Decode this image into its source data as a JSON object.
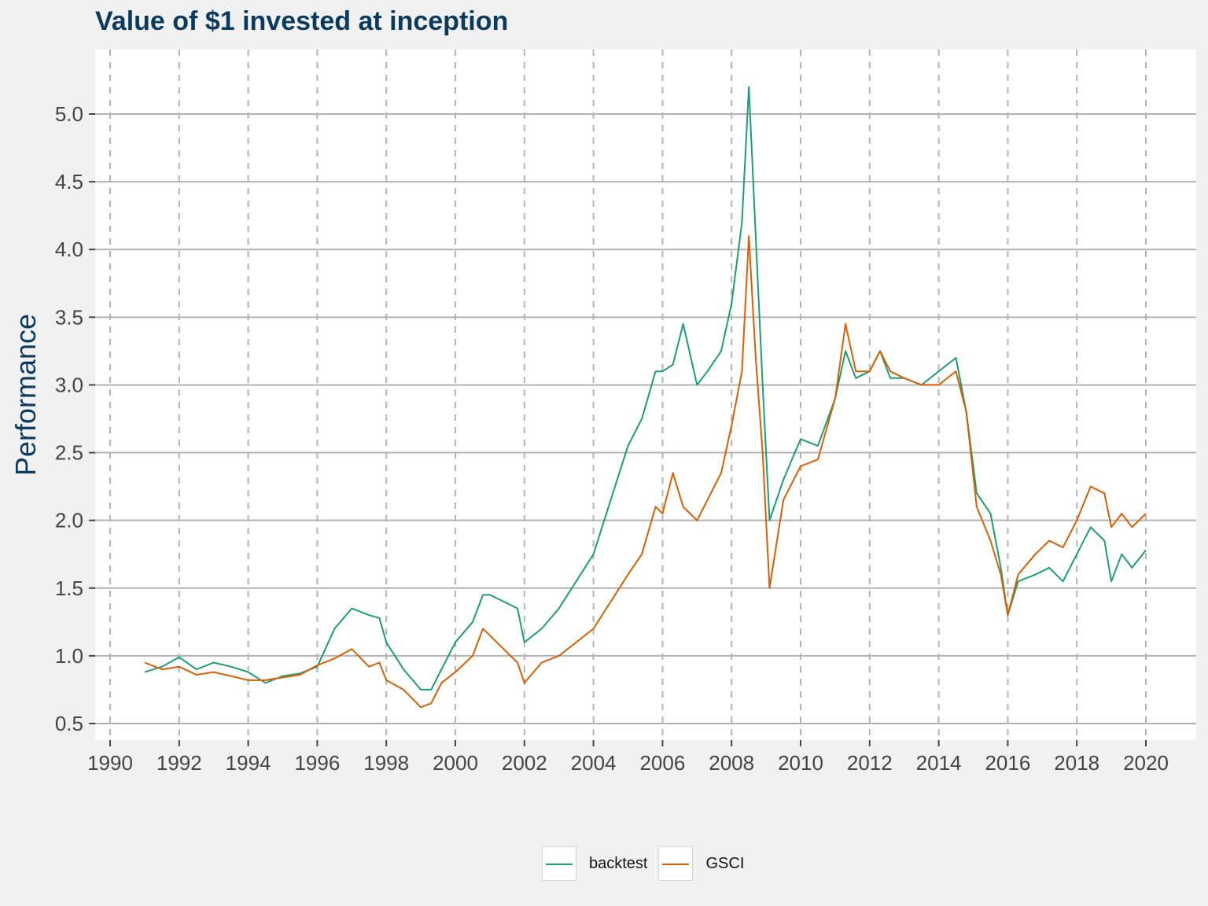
{
  "chart_data": {
    "type": "line",
    "title": "Value of $1 invested at inception",
    "ylabel": "Performance",
    "xlabel": "",
    "xlim": [
      1990,
      2020
    ],
    "ylim": [
      0.5,
      5.25
    ],
    "x_ticks": [
      "1990",
      "1992",
      "1994",
      "1996",
      "1998",
      "2000",
      "2002",
      "2004",
      "2006",
      "2008",
      "2010",
      "2012",
      "2014",
      "2016",
      "2018",
      "2020"
    ],
    "y_ticks": [
      "0.5",
      "1.0",
      "1.5",
      "2.0",
      "2.5",
      "3.0",
      "3.5",
      "4.0",
      "4.5",
      "5.0"
    ],
    "grid": true,
    "legend_position": "bottom",
    "series": [
      {
        "name": "backtest",
        "color": "#1b9e77",
        "x": [
          1991.0,
          1991.5,
          1992.0,
          1992.5,
          1993.0,
          1993.5,
          1994.0,
          1994.5,
          1995.0,
          1995.5,
          1996.0,
          1996.5,
          1997.0,
          1997.5,
          1997.8,
          1998.0,
          1998.5,
          1999.0,
          1999.3,
          1999.6,
          2000.0,
          2000.5,
          2000.8,
          2001.0,
          2001.4,
          2001.8,
          2002.0,
          2002.5,
          2003.0,
          2003.5,
          2004.0,
          2004.5,
          2005.0,
          2005.4,
          2005.8,
          2006.0,
          2006.3,
          2006.6,
          2007.0,
          2007.3,
          2007.7,
          2008.0,
          2008.3,
          2008.5,
          2008.7,
          2008.9,
          2009.1,
          2009.5,
          2010.0,
          2010.5,
          2011.0,
          2011.3,
          2011.6,
          2012.0,
          2012.3,
          2012.6,
          2013.0,
          2013.5,
          2014.0,
          2014.5,
          2014.8,
          2015.1,
          2015.5,
          2015.8,
          2016.0,
          2016.3,
          2016.8,
          2017.2,
          2017.6,
          2018.0,
          2018.4,
          2018.8,
          2019.0,
          2019.3,
          2019.6,
          2020.0
        ],
        "values": [
          0.88,
          0.92,
          0.99,
          0.9,
          0.95,
          0.92,
          0.88,
          0.8,
          0.85,
          0.87,
          0.92,
          1.2,
          1.35,
          1.3,
          1.28,
          1.1,
          0.9,
          0.75,
          0.75,
          0.9,
          1.1,
          1.25,
          1.45,
          1.45,
          1.4,
          1.35,
          1.1,
          1.2,
          1.35,
          1.55,
          1.75,
          2.15,
          2.55,
          2.75,
          3.1,
          3.1,
          3.15,
          3.45,
          3.0,
          3.1,
          3.25,
          3.6,
          4.2,
          5.2,
          4.1,
          3.0,
          2.0,
          2.3,
          2.6,
          2.55,
          2.9,
          3.25,
          3.05,
          3.1,
          3.25,
          3.05,
          3.05,
          3.0,
          3.1,
          3.2,
          2.8,
          2.2,
          2.05,
          1.65,
          1.3,
          1.55,
          1.6,
          1.65,
          1.55,
          1.75,
          1.95,
          1.85,
          1.55,
          1.75,
          1.65,
          1.78
        ]
      },
      {
        "name": "GSCI",
        "color": "#d95f02",
        "x": [
          1991.0,
          1991.5,
          1992.0,
          1992.5,
          1993.0,
          1993.5,
          1994.0,
          1994.5,
          1995.0,
          1995.5,
          1996.0,
          1996.5,
          1997.0,
          1997.5,
          1997.8,
          1998.0,
          1998.5,
          1999.0,
          1999.3,
          1999.6,
          2000.0,
          2000.5,
          2000.8,
          2001.0,
          2001.4,
          2001.8,
          2002.0,
          2002.5,
          2003.0,
          2003.5,
          2004.0,
          2004.5,
          2005.0,
          2005.4,
          2005.8,
          2006.0,
          2006.3,
          2006.6,
          2007.0,
          2007.3,
          2007.7,
          2008.0,
          2008.3,
          2008.5,
          2008.7,
          2008.9,
          2009.1,
          2009.5,
          2010.0,
          2010.5,
          2011.0,
          2011.3,
          2011.6,
          2012.0,
          2012.3,
          2012.6,
          2013.0,
          2013.5,
          2014.0,
          2014.5,
          2014.8,
          2015.1,
          2015.5,
          2015.8,
          2016.0,
          2016.3,
          2016.8,
          2017.2,
          2017.6,
          2018.0,
          2018.4,
          2018.8,
          2019.0,
          2019.3,
          2019.6,
          2020.0
        ],
        "values": [
          0.95,
          0.9,
          0.92,
          0.86,
          0.88,
          0.85,
          0.82,
          0.82,
          0.84,
          0.86,
          0.93,
          0.98,
          1.05,
          0.92,
          0.95,
          0.82,
          0.75,
          0.62,
          0.65,
          0.8,
          0.88,
          1.0,
          1.2,
          1.15,
          1.05,
          0.95,
          0.8,
          0.95,
          1.0,
          1.1,
          1.2,
          1.4,
          1.6,
          1.75,
          2.1,
          2.05,
          2.35,
          2.1,
          2.0,
          2.15,
          2.35,
          2.7,
          3.1,
          4.1,
          3.2,
          2.5,
          1.5,
          2.15,
          2.4,
          2.45,
          2.9,
          3.45,
          3.1,
          3.1,
          3.25,
          3.1,
          3.05,
          3.0,
          3.0,
          3.1,
          2.8,
          2.1,
          1.85,
          1.6,
          1.3,
          1.6,
          1.75,
          1.85,
          1.8,
          2.0,
          2.25,
          2.2,
          1.95,
          2.05,
          1.95,
          2.05
        ]
      }
    ]
  }
}
